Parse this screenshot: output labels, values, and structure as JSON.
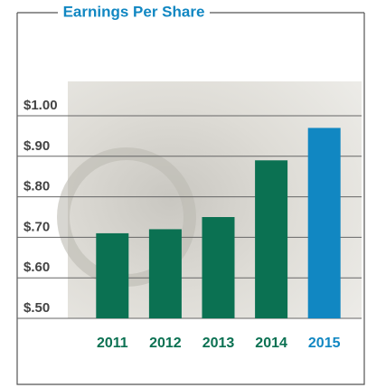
{
  "chart_data": {
    "type": "bar",
    "title": "Earnings Per Share",
    "categories": [
      "2011",
      "2012",
      "2013",
      "2014",
      "2015"
    ],
    "values": [
      0.71,
      0.72,
      0.75,
      0.89,
      0.97
    ],
    "colors": [
      "#0b7152",
      "#0b7152",
      "#0b7152",
      "#0b7152",
      "#1187c2"
    ],
    "ylim": [
      0.5,
      1.0
    ],
    "yticks": [
      {
        "value": 0.5,
        "label": "$.50"
      },
      {
        "value": 0.6,
        "label": "$.60"
      },
      {
        "value": 0.7,
        "label": "$.70"
      },
      {
        "value": 0.8,
        "label": "$.80"
      },
      {
        "value": 0.9,
        "label": "$.90"
      },
      {
        "value": 1.0,
        "label": "$1.00"
      }
    ],
    "grid": true
  }
}
